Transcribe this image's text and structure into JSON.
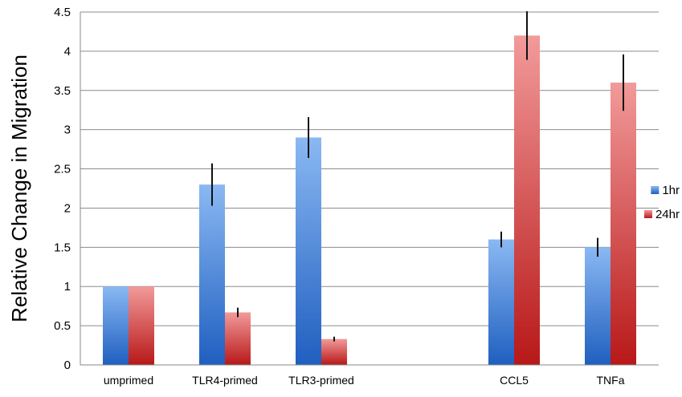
{
  "chart_data": {
    "type": "bar",
    "title": "",
    "xlabel": "",
    "ylabel": "Relative Change in Migration",
    "ylim": [
      0,
      4.5
    ],
    "yticks": [
      "0",
      "0.5",
      "1",
      "1.5",
      "2",
      "2.5",
      "3",
      "3.5",
      "4",
      "4.5"
    ],
    "grid": true,
    "legend_position": "right",
    "categories": [
      "umprimed",
      "TLR4-primed",
      "TLR3-primed",
      "",
      "CCL5",
      "TNFa"
    ],
    "series": [
      {
        "name": "1hr",
        "color": "#3a7fd9",
        "values": [
          1.0,
          2.3,
          2.9,
          null,
          1.6,
          1.5
        ],
        "errors": [
          0,
          0.27,
          0.26,
          null,
          0.1,
          0.12
        ]
      },
      {
        "name": "24hr",
        "color": "#d93030",
        "values": [
          1.0,
          0.67,
          0.33,
          null,
          4.2,
          3.6
        ],
        "errors": [
          0,
          0.06,
          0.03,
          null,
          0.31,
          0.36
        ]
      }
    ]
  }
}
